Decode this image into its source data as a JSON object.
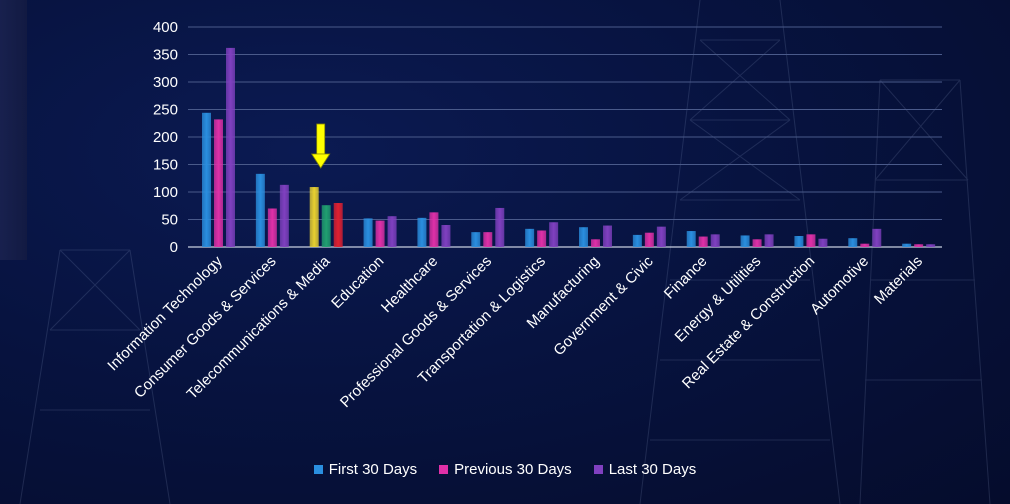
{
  "chart_data": {
    "type": "bar",
    "categories": [
      "Information Technology",
      "Consumer Goods & Services",
      "Telecommunications & Media",
      "Education",
      "Healthcare",
      "Professional Goods & Services",
      "Transportation & Logistics",
      "Manufacturing",
      "Government & Civic",
      "Finance",
      "Energy & Utilities",
      "Real Estate & Construction",
      "Automotive",
      "Materials"
    ],
    "series": [
      {
        "name": "First 30 Days",
        "color": "#2a8fe0",
        "values": [
          244,
          133,
          109,
          52,
          53,
          27,
          33,
          36,
          22,
          29,
          21,
          20,
          16,
          6
        ]
      },
      {
        "name": "Previous 30 Days",
        "color": "#e030a8",
        "values": [
          232,
          70,
          76,
          48,
          63,
          27,
          30,
          14,
          26,
          19,
          14,
          23,
          6,
          5
        ]
      },
      {
        "name": "Last 30 Days",
        "color": "#8040c0",
        "values": [
          362,
          113,
          80,
          56,
          40,
          71,
          45,
          39,
          37,
          23,
          23,
          15,
          33,
          5
        ]
      }
    ],
    "highlight": {
      "category": "Telecommunications & Media",
      "colors": [
        "#e8d030",
        "#20a070",
        "#e02030"
      ],
      "arrow_color": "#ffff00"
    },
    "y_ticks": [
      "0",
      "50",
      "100",
      "150",
      "200",
      "250",
      "300",
      "350",
      "400"
    ],
    "ylim": [
      0,
      400
    ],
    "grid": true,
    "legend_position": "bottom"
  }
}
